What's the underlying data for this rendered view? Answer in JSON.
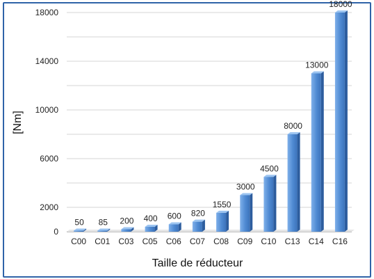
{
  "chart_data": {
    "type": "bar",
    "categories": [
      "C00",
      "C01",
      "C03",
      "C05",
      "C06",
      "C07",
      "C08",
      "C09",
      "C10",
      "C13",
      "C14",
      "C16"
    ],
    "values": [
      50,
      85,
      200,
      400,
      600,
      820,
      1550,
      3000,
      4500,
      8000,
      13000,
      18000
    ],
    "data_labels": [
      "50",
      "85",
      "200",
      "400",
      "600",
      "820",
      "1550",
      "3000",
      "4500",
      "8000",
      "13000",
      "18000"
    ],
    "xlabel": "Taille de réducteur",
    "ylabel": "[Nm]",
    "ylim": [
      0,
      18000
    ],
    "yticks": [
      0,
      2000,
      6000,
      10000,
      14000,
      18000
    ],
    "ytick_labels": [
      "0",
      "2000",
      "6000",
      "10000",
      "14000",
      "18000"
    ],
    "grid": true,
    "bar_color": "#4f8ad2",
    "frame_color": "#2f63a8"
  }
}
